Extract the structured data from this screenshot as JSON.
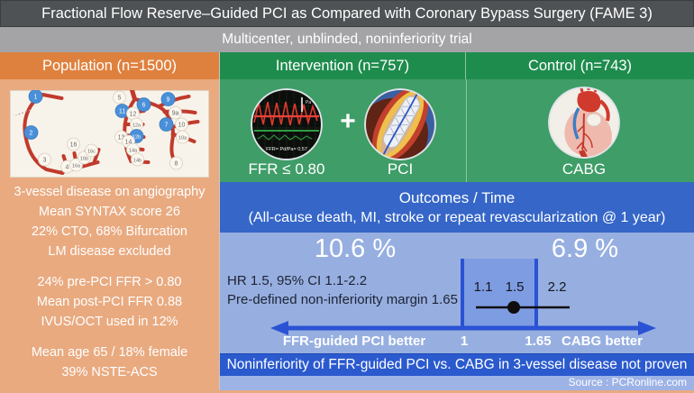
{
  "title": "Fractional Flow Reserve–Guided PCI as Compared with Coronary Bypass Surgery (FAME 3)",
  "study_design": "Multicenter, unblinded, noninferiority trial",
  "population": {
    "header": "Population (n=1500)",
    "diagram_segments": [
      {
        "label": "1",
        "highlighted": true
      },
      {
        "label": "2",
        "highlighted": true
      },
      {
        "label": "3",
        "highlighted": false
      },
      {
        "label": "4",
        "highlighted": false
      },
      {
        "label": "16",
        "highlighted": false
      },
      {
        "label": "16a",
        "highlighted": false
      },
      {
        "label": "16b",
        "highlighted": false
      },
      {
        "label": "16c",
        "highlighted": false
      },
      {
        "label": "5",
        "highlighted": false
      },
      {
        "label": "6",
        "highlighted": true
      },
      {
        "label": "7",
        "highlighted": true
      },
      {
        "label": "8",
        "highlighted": false
      },
      {
        "label": "9",
        "highlighted": true
      },
      {
        "label": "9a",
        "highlighted": false
      },
      {
        "label": "10",
        "highlighted": false
      },
      {
        "label": "10a",
        "highlighted": false
      },
      {
        "label": "11",
        "highlighted": true
      },
      {
        "label": "12",
        "highlighted": false
      },
      {
        "label": "12a",
        "highlighted": false
      },
      {
        "label": "12b",
        "highlighted": true
      },
      {
        "label": "13",
        "highlighted": false
      },
      {
        "label": "14",
        "highlighted": false
      },
      {
        "label": "14a",
        "highlighted": false
      },
      {
        "label": "14b",
        "highlighted": false
      }
    ],
    "block1": [
      "3-vessel disease on angiography",
      "Mean SYNTAX score 26",
      "22% CTO, 68% Bifurcation",
      "LM disease excluded"
    ],
    "block2": [
      "24% pre-PCI FFR > 0.80",
      "Mean post-PCI FFR 0.88",
      "IVUS/OCT used in 12%"
    ],
    "block3": [
      "Mean age 65 / 18% female",
      "39% NSTE-ACS"
    ]
  },
  "intervention": {
    "header": "Intervention (n=757)",
    "plus": "+",
    "ffr_label": "FFR ≤ 0.80",
    "pci_label": "PCI",
    "ffr_reading": "FFR= Pd/Pa= 0.57",
    "cursor_label": "Pa"
  },
  "control": {
    "header": "Control (n=743)",
    "label": "CABG"
  },
  "outcomes": {
    "title": "Outcomes / Time",
    "subtitle": "(All-cause death, MI, stroke or repeat revascularization @ 1 year)"
  },
  "results": {
    "pci_event_rate": "10.6 %",
    "cabg_event_rate": "6.9 %",
    "hr_line": "HR 1.5, 95% CI 1.1-2.2",
    "margin_line": "Pre-defined non-inferiority margin 1.65",
    "forest": {
      "ci_low": "1.1",
      "point": "1.5",
      "ci_high": "2.2",
      "axis_reference": "1",
      "axis_margin": "1.65",
      "left_label": "FFR-guided PCI better",
      "right_label": "CABG better"
    }
  },
  "conclusion": "Noninferiority of FFR-guided PCI vs. CABG in 3-vessel disease not proven",
  "source": "Source : PCRonline.com",
  "colors": {
    "orange_header": "#df813e",
    "orange_body": "#e9aa80",
    "green_header": "#1e8c4d",
    "green_body": "#3f9d68",
    "royal_blue": "#3566c8",
    "light_blue": "#97afe0",
    "bright_blue": "#2a52d4"
  },
  "chart_data": {
    "type": "forest",
    "title": "All-cause death, MI, stroke or repeat revascularization @ 1 year",
    "series": [
      {
        "name": "FFR-guided PCI vs CABG",
        "hazard_ratio": 1.5,
        "ci_low": 1.1,
        "ci_high": 2.2
      }
    ],
    "reference_line": 1,
    "noninferiority_margin": 1.65,
    "event_rates": {
      "ffr_guided_pci": 10.6,
      "cabg": 6.9
    },
    "xlabel_left": "FFR-guided PCI better",
    "xlabel_right": "CABG better"
  }
}
